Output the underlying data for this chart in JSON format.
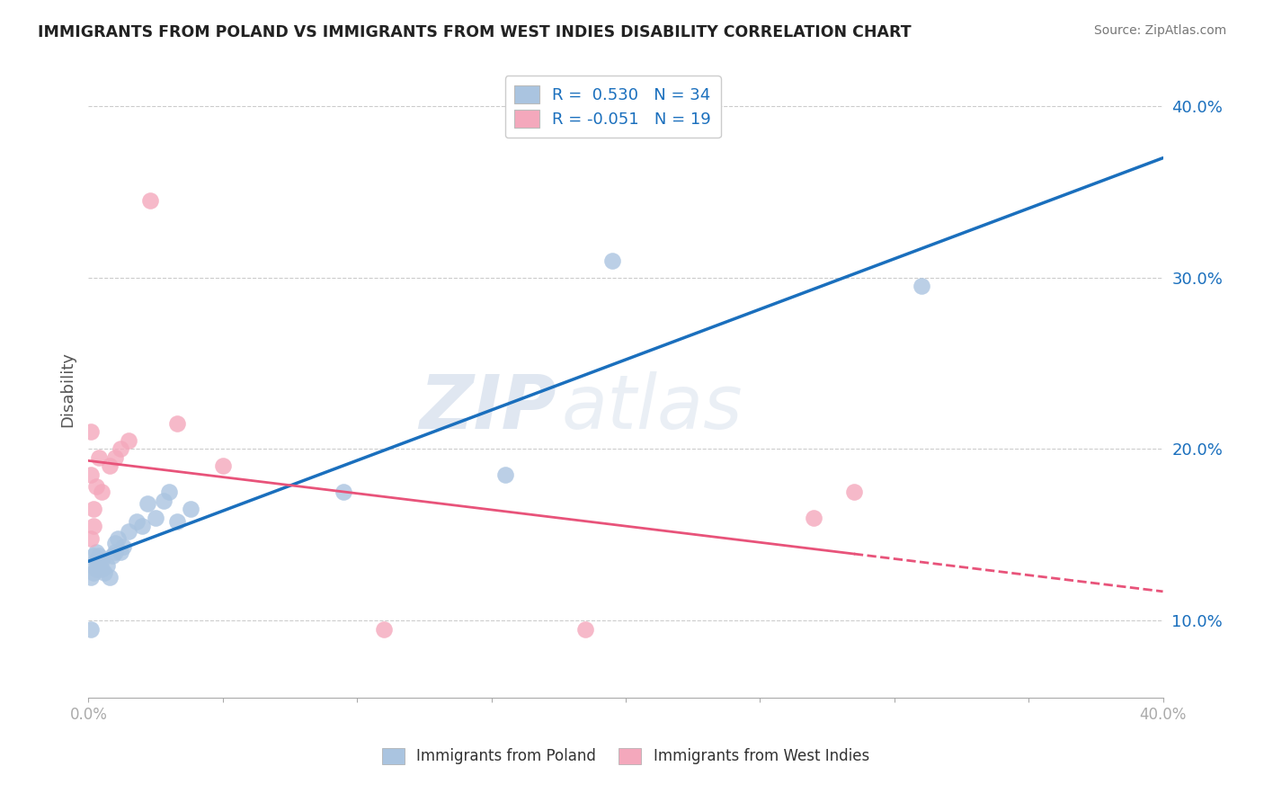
{
  "title": "IMMIGRANTS FROM POLAND VS IMMIGRANTS FROM WEST INDIES DISABILITY CORRELATION CHART",
  "source": "Source: ZipAtlas.com",
  "ylabel": "Disability",
  "xlim": [
    0.0,
    0.4
  ],
  "ylim": [
    0.055,
    0.415
  ],
  "yticks": [
    0.1,
    0.2,
    0.3,
    0.4
  ],
  "xticks": [
    0.0,
    0.05,
    0.1,
    0.15,
    0.2,
    0.25,
    0.3,
    0.35,
    0.4
  ],
  "xtick_labels": [
    "0.0%",
    "",
    "",
    "",
    "",
    "",
    "",
    "",
    "40.0%"
  ],
  "r_poland": 0.53,
  "n_poland": 34,
  "r_west_indies": -0.051,
  "n_west_indies": 19,
  "color_poland": "#aac4e0",
  "color_west_indies": "#f4a8bc",
  "line_color_poland": "#1a6fbd",
  "line_color_west_indies": "#e8537a",
  "poland_x": [
    0.001,
    0.001,
    0.002,
    0.002,
    0.002,
    0.003,
    0.003,
    0.003,
    0.004,
    0.004,
    0.005,
    0.005,
    0.006,
    0.007,
    0.008,
    0.009,
    0.01,
    0.01,
    0.011,
    0.012,
    0.013,
    0.015,
    0.018,
    0.02,
    0.022,
    0.025,
    0.028,
    0.03,
    0.033,
    0.038,
    0.095,
    0.155,
    0.195,
    0.31
  ],
  "poland_y": [
    0.095,
    0.125,
    0.128,
    0.132,
    0.138,
    0.13,
    0.135,
    0.14,
    0.133,
    0.138,
    0.13,
    0.135,
    0.128,
    0.132,
    0.125,
    0.138,
    0.14,
    0.145,
    0.148,
    0.14,
    0.143,
    0.152,
    0.158,
    0.155,
    0.168,
    0.16,
    0.17,
    0.175,
    0.158,
    0.165,
    0.175,
    0.185,
    0.31,
    0.295
  ],
  "west_indies_x": [
    0.001,
    0.001,
    0.001,
    0.002,
    0.002,
    0.003,
    0.004,
    0.005,
    0.008,
    0.01,
    0.012,
    0.015,
    0.023,
    0.033,
    0.05,
    0.11,
    0.185,
    0.27,
    0.285
  ],
  "west_indies_y": [
    0.148,
    0.185,
    0.21,
    0.155,
    0.165,
    0.178,
    0.195,
    0.175,
    0.19,
    0.195,
    0.2,
    0.205,
    0.345,
    0.215,
    0.19,
    0.095,
    0.095,
    0.16,
    0.175
  ],
  "watermark_text": "ZIP",
  "watermark_text2": "atlas",
  "background_color": "#ffffff",
  "grid_color": "#cccccc"
}
